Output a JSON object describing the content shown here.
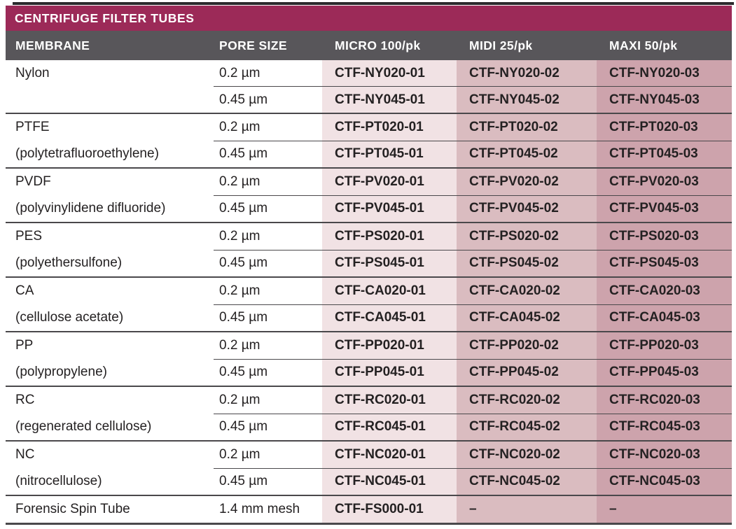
{
  "title": "CENTRIFUGE FILTER TUBES",
  "colors": {
    "title_bar": "#9c2a58",
    "header_bg": "#58565a",
    "micro_bg": "#f1e2e4",
    "midi_bg": "#dabcc0",
    "maxi_bg": "#cda3ac",
    "rule": "#4a484b",
    "text": "#242122",
    "header_text": "#ffffff"
  },
  "columns": [
    {
      "id": "membrane",
      "label": "MEMBRANE"
    },
    {
      "id": "pore_size",
      "label": "PORE SIZE"
    },
    {
      "id": "micro",
      "label": "MICRO 100/pk"
    },
    {
      "id": "midi",
      "label": "MIDI 25/pk"
    },
    {
      "id": "maxi",
      "label": "MAXI 50/pk"
    }
  ],
  "groups": [
    {
      "name": "Nylon",
      "detail": "",
      "rows": [
        {
          "pore_size": "0.2 µm",
          "micro": "CTF-NY020-01",
          "midi": "CTF-NY020-02",
          "maxi": "CTF-NY020-03"
        },
        {
          "pore_size": "0.45 µm",
          "micro": "CTF-NY045-01",
          "midi": "CTF-NY045-02",
          "maxi": "CTF-NY045-03"
        }
      ]
    },
    {
      "name": "PTFE",
      "detail": "(polytetrafluoroethylene)",
      "rows": [
        {
          "pore_size": "0.2 µm",
          "micro": "CTF-PT020-01",
          "midi": "CTF-PT020-02",
          "maxi": "CTF-PT020-03"
        },
        {
          "pore_size": "0.45 µm",
          "micro": "CTF-PT045-01",
          "midi": "CTF-PT045-02",
          "maxi": "CTF-PT045-03"
        }
      ]
    },
    {
      "name": "PVDF",
      "detail": "(polyvinylidene difluoride)",
      "rows": [
        {
          "pore_size": "0.2 µm",
          "micro": "CTF-PV020-01",
          "midi": "CTF-PV020-02",
          "maxi": "CTF-PV020-03"
        },
        {
          "pore_size": "0.45 µm",
          "micro": "CTF-PV045-01",
          "midi": "CTF-PV045-02",
          "maxi": "CTF-PV045-03"
        }
      ]
    },
    {
      "name": "PES",
      "detail": "(polyethersulfone)",
      "rows": [
        {
          "pore_size": "0.2 µm",
          "micro": "CTF-PS020-01",
          "midi": "CTF-PS020-02",
          "maxi": "CTF-PS020-03"
        },
        {
          "pore_size": "0.45 µm",
          "micro": "CTF-PS045-01",
          "midi": "CTF-PS045-02",
          "maxi": "CTF-PS045-03"
        }
      ]
    },
    {
      "name": "CA",
      "detail": "(cellulose acetate)",
      "rows": [
        {
          "pore_size": "0.2 µm",
          "micro": "CTF-CA020-01",
          "midi": "CTF-CA020-02",
          "maxi": "CTF-CA020-03"
        },
        {
          "pore_size": "0.45 µm",
          "micro": "CTF-CA045-01",
          "midi": "CTF-CA045-02",
          "maxi": "CTF-CA045-03"
        }
      ]
    },
    {
      "name": "PP",
      "detail": "(polypropylene)",
      "rows": [
        {
          "pore_size": "0.2 µm",
          "micro": "CTF-PP020-01",
          "midi": "CTF-PP020-02",
          "maxi": "CTF-PP020-03"
        },
        {
          "pore_size": "0.45 µm",
          "micro": "CTF-PP045-01",
          "midi": "CTF-PP045-02",
          "maxi": "CTF-PP045-03"
        }
      ]
    },
    {
      "name": "RC",
      "detail": "(regenerated cellulose)",
      "rows": [
        {
          "pore_size": "0.2 µm",
          "micro": "CTF-RC020-01",
          "midi": "CTF-RC020-02",
          "maxi": "CTF-RC020-03"
        },
        {
          "pore_size": "0.45 µm",
          "micro": "CTF-RC045-01",
          "midi": "CTF-RC045-02",
          "maxi": "CTF-RC045-03"
        }
      ]
    },
    {
      "name": "NC",
      "detail": "(nitrocellulose)",
      "rows": [
        {
          "pore_size": "0.2 µm",
          "micro": "CTF-NC020-01",
          "midi": "CTF-NC020-02",
          "maxi": "CTF-NC020-03"
        },
        {
          "pore_size": "0.45 µm",
          "micro": "CTF-NC045-01",
          "midi": "CTF-NC045-02",
          "maxi": "CTF-NC045-03"
        }
      ]
    },
    {
      "name": "Forensic Spin Tube",
      "detail": "",
      "rows": [
        {
          "pore_size": "1.4 mm mesh",
          "micro": "CTF-FS000-01",
          "midi": "–",
          "maxi": "–"
        }
      ]
    }
  ]
}
